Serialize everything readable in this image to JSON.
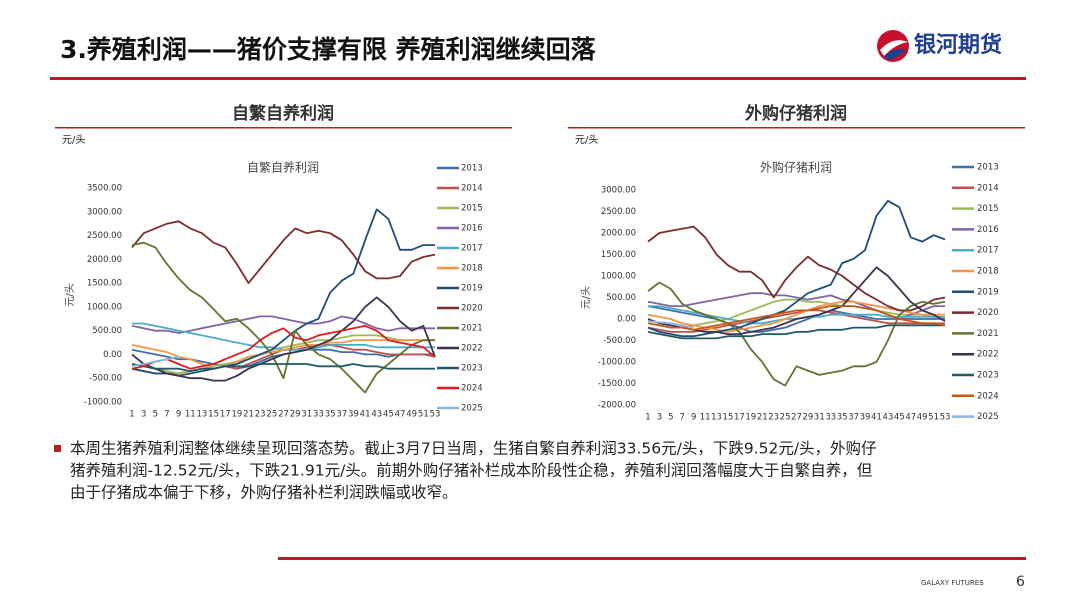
{
  "header": {
    "title": "3.养殖利润——猪价支撑有限 养殖利润继续回落",
    "logo_text": "银河期货"
  },
  "chart_data": [
    {
      "type": "line",
      "heading": "自繁自养利润",
      "unit": "元/头",
      "title": "自繁自养利润",
      "ylabel": "元/头",
      "x": [
        1,
        3,
        5,
        7,
        9,
        11,
        13,
        15,
        17,
        19,
        21,
        23,
        25,
        27,
        29,
        31,
        33,
        35,
        37,
        39,
        41,
        43,
        45,
        47,
        49,
        51,
        53
      ],
      "xlim": [
        1,
        53
      ],
      "xticks": [
        1,
        3,
        5,
        7,
        9,
        11,
        13,
        15,
        17,
        19,
        21,
        23,
        25,
        27,
        29,
        31,
        33,
        35,
        37,
        39,
        41,
        43,
        45,
        47,
        49,
        51,
        53
      ],
      "ylim": [
        -1000,
        3500
      ],
      "yticks": [
        {
          "value": -1000,
          "label": "-1000.00"
        },
        {
          "value": -500,
          "label": "-500.00"
        },
        {
          "value": 0,
          "label": "0.00"
        },
        {
          "value": 500,
          "label": "500.00"
        },
        {
          "value": 1000,
          "label": "1000.00"
        },
        {
          "value": 1500,
          "label": "1500.00"
        },
        {
          "value": 2000,
          "label": "2000.00"
        },
        {
          "value": 2500,
          "label": "2500.00"
        },
        {
          "value": 3000,
          "label": "3000.00"
        },
        {
          "value": 3500,
          "label": "3500.00"
        }
      ],
      "legend": "right",
      "series": [
        {
          "name": "2013",
          "color": "#3d6fa8",
          "values": [
            100,
            50,
            0,
            -50,
            -100,
            -100,
            -150,
            -200,
            -250,
            -300,
            -250,
            -150,
            -50,
            0,
            50,
            100,
            100,
            100,
            50,
            50,
            0,
            0,
            -50,
            0,
            0,
            0,
            0
          ]
        },
        {
          "name": "2014",
          "color": "#c0504d",
          "values": [
            -300,
            -350,
            -400,
            -400,
            -400,
            -350,
            -300,
            -300,
            -250,
            -300,
            -200,
            -100,
            0,
            100,
            100,
            150,
            200,
            200,
            150,
            100,
            100,
            50,
            0,
            0,
            0,
            0,
            -50
          ]
        },
        {
          "name": "2015",
          "color": "#9bbb59",
          "values": [
            -200,
            -250,
            -300,
            -350,
            -400,
            -350,
            -300,
            -250,
            -200,
            -150,
            -100,
            0,
            100,
            150,
            200,
            250,
            300,
            300,
            350,
            400,
            400,
            400,
            350,
            300,
            300,
            300,
            300
          ]
        },
        {
          "name": "2016",
          "color": "#8064a2",
          "values": [
            600,
            550,
            500,
            500,
            450,
            500,
            550,
            600,
            650,
            700,
            750,
            800,
            800,
            750,
            700,
            650,
            650,
            700,
            800,
            750,
            650,
            550,
            500,
            550,
            550,
            550,
            550
          ]
        },
        {
          "name": "2017",
          "color": "#4bacc6",
          "values": [
            650,
            650,
            600,
            550,
            500,
            450,
            400,
            350,
            300,
            250,
            200,
            150,
            150,
            100,
            100,
            100,
            150,
            200,
            200,
            200,
            200,
            150,
            150,
            150,
            150,
            150,
            150
          ]
        },
        {
          "name": "2018",
          "color": "#f79646",
          "values": [
            200,
            150,
            100,
            50,
            -50,
            -100,
            -200,
            -300,
            -250,
            -150,
            -50,
            0,
            50,
            100,
            150,
            200,
            200,
            250,
            250,
            300,
            300,
            300,
            300,
            300,
            300,
            300,
            300
          ]
        },
        {
          "name": "2019",
          "color": "#1f4e79",
          "values": [
            -300,
            -350,
            -400,
            -400,
            -450,
            -400,
            -350,
            -300,
            -250,
            -200,
            -100,
            0,
            100,
            300,
            500,
            650,
            750,
            1300,
            1550,
            1700,
            2400,
            3050,
            2850,
            2200,
            2200,
            2300,
            2300
          ]
        },
        {
          "name": "2020",
          "color": "#7b2c2c",
          "values": [
            2250,
            2550,
            2650,
            2750,
            2800,
            2650,
            2550,
            2350,
            2250,
            1900,
            1500,
            1800,
            2100,
            2400,
            2650,
            2550,
            2600,
            2550,
            2400,
            2100,
            1750,
            1600,
            1600,
            1650,
            1950,
            2050,
            2100
          ]
        },
        {
          "name": "2021",
          "color": "#5f7530",
          "values": [
            2300,
            2350,
            2250,
            1900,
            1600,
            1350,
            1200,
            950,
            700,
            750,
            550,
            300,
            0,
            -500,
            500,
            200,
            0,
            -100,
            -300,
            -550,
            -800,
            -400,
            -200,
            0,
            200,
            300,
            300
          ]
        },
        {
          "name": "2022",
          "color": "#3f3151",
          "values": [
            0,
            -200,
            -300,
            -400,
            -450,
            -500,
            -500,
            -550,
            -550,
            -450,
            -300,
            -200,
            -100,
            0,
            50,
            100,
            200,
            300,
            500,
            700,
            1000,
            1200,
            1000,
            700,
            500,
            600,
            -50
          ]
        },
        {
          "name": "2023",
          "color": "#215968",
          "values": [
            -200,
            -250,
            -300,
            -300,
            -300,
            -350,
            -300,
            -300,
            -250,
            -250,
            -250,
            -200,
            -200,
            -200,
            -200,
            -200,
            -250,
            -250,
            -250,
            -200,
            -250,
            -250,
            -300,
            -300,
            -300,
            -300,
            -300
          ]
        },
        {
          "name": "2024",
          "color": "#e31a1c",
          "values": [
            -300,
            -250,
            -150,
            -100,
            -200,
            -300,
            -250,
            -200,
            -100,
            0,
            100,
            300,
            450,
            550,
            350,
            300,
            400,
            450,
            500,
            550,
            600,
            500,
            300,
            250,
            200,
            150,
            -50
          ]
        },
        {
          "name": "2025",
          "color": "#8eb4e3",
          "values": [
            -250,
            -200,
            -150,
            -100,
            -50,
            null,
            null,
            null,
            null,
            null,
            null,
            null,
            null,
            null,
            null,
            null,
            null,
            null,
            null,
            null,
            null,
            null,
            null,
            null,
            null,
            null,
            null
          ]
        }
      ]
    },
    {
      "type": "line",
      "heading": "外购仔猪利润",
      "unit": "元/头",
      "title": "外购仔猪利润",
      "ylabel": "元/头",
      "x": [
        1,
        3,
        5,
        7,
        9,
        11,
        13,
        15,
        17,
        19,
        21,
        23,
        25,
        27,
        29,
        31,
        33,
        35,
        37,
        39,
        41,
        43,
        45,
        47,
        49,
        51,
        53
      ],
      "xlim": [
        1,
        53
      ],
      "xticks": [
        1,
        3,
        5,
        7,
        9,
        11,
        13,
        15,
        17,
        19,
        21,
        23,
        25,
        27,
        29,
        31,
        33,
        35,
        37,
        39,
        41,
        43,
        45,
        47,
        49,
        51,
        53
      ],
      "ylim": [
        -2000,
        3000
      ],
      "yticks": [
        {
          "value": -2000,
          "label": "-2000.00"
        },
        {
          "value": -1500,
          "label": "-1500.00"
        },
        {
          "value": -1000,
          "label": "-1000.00"
        },
        {
          "value": -500,
          "label": "-500.00"
        },
        {
          "value": 0,
          "label": "0.00"
        },
        {
          "value": 500,
          "label": "500.00"
        },
        {
          "value": 1000,
          "label": "1000.00"
        },
        {
          "value": 1500,
          "label": "1500.00"
        },
        {
          "value": 2000,
          "label": "2000.00"
        },
        {
          "value": 2500,
          "label": "2500.00"
        },
        {
          "value": 3000,
          "label": "3000.00"
        }
      ],
      "legend": "right",
      "series": [
        {
          "name": "2013",
          "color": "#3d6fa8",
          "values": [
            300,
            250,
            200,
            150,
            100,
            50,
            0,
            -100,
            -200,
            -300,
            -300,
            -250,
            -200,
            -100,
            0,
            100,
            200,
            150,
            100,
            50,
            0,
            0,
            0,
            0,
            0,
            0,
            0
          ]
        },
        {
          "name": "2014",
          "color": "#c0504d",
          "values": [
            -200,
            -250,
            -300,
            -300,
            -300,
            -250,
            -200,
            -150,
            -100,
            -50,
            0,
            50,
            100,
            150,
            200,
            200,
            150,
            100,
            50,
            0,
            -50,
            -100,
            -100,
            -100,
            -100,
            -100,
            -100
          ]
        },
        {
          "name": "2015",
          "color": "#9bbb59",
          "values": [
            -100,
            -150,
            -200,
            -200,
            -150,
            -100,
            -50,
            0,
            100,
            200,
            300,
            400,
            450,
            450,
            400,
            400,
            350,
            300,
            300,
            250,
            200,
            150,
            100,
            100,
            100,
            50,
            50
          ]
        },
        {
          "name": "2016",
          "color": "#8064a2",
          "values": [
            400,
            350,
            300,
            300,
            350,
            400,
            450,
            500,
            550,
            600,
            600,
            550,
            550,
            500,
            450,
            500,
            550,
            450,
            400,
            300,
            200,
            100,
            0,
            100,
            200,
            300,
            300
          ]
        },
        {
          "name": "2017",
          "color": "#4bacc6",
          "values": [
            300,
            300,
            250,
            200,
            150,
            100,
            50,
            0,
            -50,
            -100,
            -100,
            -50,
            0,
            0,
            50,
            50,
            100,
            100,
            100,
            100,
            100,
            50,
            50,
            50,
            50,
            50,
            50
          ]
        },
        {
          "name": "2018",
          "color": "#f79646",
          "values": [
            100,
            50,
            0,
            -100,
            -150,
            -200,
            -250,
            -300,
            -250,
            -200,
            -150,
            -100,
            0,
            100,
            200,
            300,
            350,
            400,
            400,
            350,
            300,
            250,
            200,
            150,
            100,
            100,
            100
          ]
        },
        {
          "name": "2019",
          "color": "#1f4e79",
          "values": [
            -200,
            -300,
            -350,
            -400,
            -400,
            -350,
            -300,
            -250,
            -200,
            -100,
            0,
            100,
            200,
            400,
            600,
            700,
            800,
            1300,
            1400,
            1600,
            2400,
            2750,
            2600,
            1900,
            1800,
            1950,
            1850
          ]
        },
        {
          "name": "2020",
          "color": "#7b2c2c",
          "values": [
            1800,
            2000,
            2050,
            2100,
            2150,
            1900,
            1500,
            1250,
            1100,
            1100,
            900,
            500,
            900,
            1200,
            1450,
            1250,
            1150,
            1000,
            800,
            600,
            450,
            300,
            200,
            200,
            300,
            450,
            500
          ]
        },
        {
          "name": "2021",
          "color": "#5f7530",
          "values": [
            650,
            850,
            700,
            350,
            200,
            100,
            0,
            -100,
            -300,
            -700,
            -1000,
            -1400,
            -1550,
            -1100,
            -1200,
            -1300,
            -1250,
            -1200,
            -1100,
            -1100,
            -1000,
            -500,
            100,
            300,
            400,
            350,
            400
          ]
        },
        {
          "name": "2022",
          "color": "#3f3151",
          "values": [
            0,
            -100,
            -150,
            -200,
            -250,
            -300,
            -300,
            -350,
            -350,
            -300,
            -250,
            -200,
            -100,
            0,
            50,
            100,
            200,
            300,
            600,
            900,
            1200,
            1000,
            700,
            400,
            200,
            100,
            -50
          ]
        },
        {
          "name": "2023",
          "color": "#215968",
          "values": [
            -300,
            -350,
            -400,
            -450,
            -450,
            -450,
            -450,
            -400,
            -400,
            -400,
            -350,
            -350,
            -350,
            -300,
            -300,
            -250,
            -250,
            -250,
            -200,
            -200,
            -200,
            -150,
            -150,
            -150,
            -150,
            -150,
            -150
          ]
        },
        {
          "name": "2024",
          "color": "#c55a11",
          "values": [
            -100,
            -150,
            -200,
            -200,
            -250,
            -200,
            -150,
            -100,
            -50,
            0,
            50,
            100,
            150,
            200,
            200,
            250,
            300,
            300,
            300,
            250,
            200,
            100,
            0,
            -50,
            -100,
            -100,
            -150
          ]
        },
        {
          "name": "2025",
          "color": "#8eb4e3",
          "values": [
            -50,
            -80,
            -100,
            -150,
            -200,
            null,
            null,
            null,
            null,
            null,
            null,
            null,
            null,
            null,
            null,
            null,
            null,
            null,
            null,
            null,
            null,
            null,
            null,
            null,
            null,
            null,
            null
          ]
        }
      ]
    }
  ],
  "body": {
    "lines": [
      "本周生猪养殖利润整体继续呈现回落态势。截止3月7日当周，生猪自繁自养利润33.56元/头，下跌9.52元/头，外购仔",
      "猪养殖利润-12.52元/头，下跌21.91元/头。前期外购仔猪补栏成本阶段性企稳，养殖利润回落幅度大于自繁自养，但",
      "由于仔猪成本偏于下移，外购仔猪补栏利润跌幅或收窄。"
    ]
  },
  "footer": {
    "brand": "GALAXY FUTURES",
    "page": "6"
  }
}
